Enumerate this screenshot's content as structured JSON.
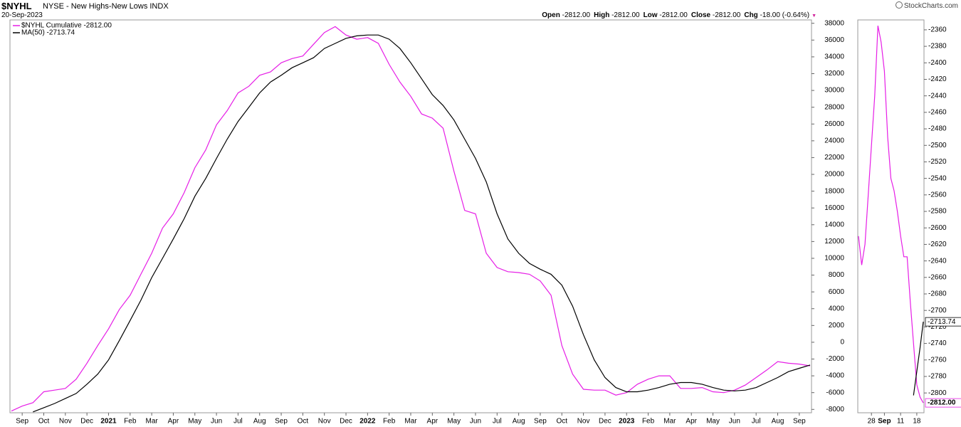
{
  "header": {
    "symbol": "$NYHL",
    "description": "NYSE - New Highs-New Lows INDX",
    "date": "20-Sep-2023",
    "source": "StockCharts.com",
    "quote": [
      {
        "label": "Open",
        "value": "-2812.00"
      },
      {
        "label": "High",
        "value": "-2812.00"
      },
      {
        "label": "Low",
        "value": "-2812.00"
      },
      {
        "label": "Close",
        "value": "-2812.00"
      },
      {
        "label": "Chg",
        "value": "-18.00 (-0.64%)"
      }
    ]
  },
  "chart_data": [
    {
      "type": "line",
      "legend": "upper left",
      "categories": [
        null,
        "Sep",
        null,
        "Oct",
        null,
        "Nov",
        null,
        "Dec",
        null,
        "2021",
        null,
        "Feb",
        null,
        "Mar",
        null,
        "Apr",
        null,
        "May",
        null,
        "Jun",
        null,
        "Jul",
        null,
        "Aug",
        null,
        "Sep",
        null,
        "Oct",
        null,
        "Nov",
        null,
        "Dec",
        null,
        "2022",
        null,
        "Feb",
        null,
        "Mar",
        null,
        "Apr",
        null,
        "May",
        null,
        "Jun",
        null,
        "Jul",
        null,
        "Aug",
        null,
        "Sep",
        null,
        "Oct",
        null,
        "Nov",
        null,
        "Dec",
        null,
        "2023",
        null,
        "Feb",
        null,
        "Mar",
        null,
        "Apr",
        null,
        "May",
        null,
        "Jun",
        null,
        "Jul",
        null,
        "Aug",
        null,
        "Sep",
        null
      ],
      "series": [
        {
          "name": "$NYHL Cumulative -2812.00",
          "color": "#e61ee6",
          "values": [
            -8200,
            -7600,
            -7200,
            -5900,
            -5700,
            -5500,
            -4400,
            -2500,
            -400,
            1600,
            3900,
            5600,
            8100,
            10600,
            13600,
            15300,
            17800,
            20800,
            22900,
            25900,
            27600,
            29700,
            30500,
            31800,
            32200,
            33300,
            33800,
            34100,
            35500,
            36900,
            37600,
            36600,
            36100,
            36300,
            35600,
            33100,
            31000,
            29300,
            27200,
            26700,
            25500,
            20400,
            15700,
            15300,
            10600,
            8900,
            8400,
            8300,
            8100,
            7300,
            5600,
            -400,
            -3800,
            -5600,
            -5700,
            -5700,
            -6300,
            -6000,
            -5000,
            -4400,
            -4000,
            -4000,
            -5500,
            -5500,
            -5400,
            -5900,
            -6000,
            -5700,
            -5100,
            -4200,
            -3300,
            -2300,
            -2500,
            -2600,
            -2812
          ]
        },
        {
          "name": "MA(50) -2713.74",
          "color": "#000000",
          "values": [
            null,
            null,
            -8300,
            -7800,
            -7300,
            -6700,
            -6100,
            -5000,
            -3800,
            -2100,
            200,
            2600,
            5000,
            7700,
            10000,
            12300,
            14700,
            17400,
            19500,
            21900,
            24200,
            26300,
            28000,
            29700,
            31000,
            31800,
            32700,
            33300,
            33900,
            35000,
            35600,
            36200,
            36500,
            36600,
            36600,
            36100,
            35000,
            33300,
            31400,
            29500,
            28200,
            26500,
            24200,
            21900,
            19100,
            15300,
            12300,
            10600,
            9400,
            8700,
            8100,
            6800,
            4300,
            900,
            -2100,
            -4200,
            -5400,
            -5900,
            -5900,
            -5700,
            -5400,
            -5000,
            -4800,
            -4800,
            -5000,
            -5400,
            -5700,
            -5800,
            -5700,
            -5400,
            -4800,
            -4200,
            -3500,
            -3100,
            -2713.74
          ]
        }
      ],
      "ylim": [
        -8400,
        38400
      ],
      "yticks": [
        -8000,
        -6000,
        -4000,
        -2000,
        0,
        2000,
        4000,
        6000,
        8000,
        10000,
        12000,
        14000,
        16000,
        18000,
        20000,
        22000,
        24000,
        26000,
        28000,
        30000,
        32000,
        34000,
        36000,
        38000
      ]
    },
    {
      "type": "line",
      "categories": [
        null,
        null,
        null,
        null,
        "28",
        null,
        null,
        null,
        "Sep",
        null,
        null,
        null,
        null,
        "11",
        null,
        null,
        null,
        null,
        "18",
        null,
        null
      ],
      "series": [
        {
          "color": "#e61ee6",
          "values": [
            -2610,
            -2645,
            -2620,
            -2560,
            -2500,
            -2440,
            -2355,
            -2375,
            -2410,
            -2490,
            -2540,
            -2555,
            -2580,
            -2610,
            -2635,
            -2635,
            -2690,
            -2740,
            -2790,
            -2805,
            -2812
          ],
          "value_labels": [
            null,
            null,
            null,
            null,
            null,
            null,
            null,
            null,
            null,
            null,
            null,
            null,
            null,
            null,
            null,
            null,
            null,
            null,
            null,
            null,
            "-2812.00"
          ]
        },
        {
          "color": "#000000",
          "values": [
            null,
            null,
            null,
            null,
            null,
            null,
            null,
            null,
            null,
            null,
            null,
            null,
            null,
            null,
            null,
            null,
            null,
            -2803,
            -2774,
            -2745,
            -2713.74
          ]
        }
      ],
      "ylim": [
        -2824,
        -2348
      ],
      "yticks": [
        -2800,
        -2780,
        -2760,
        -2740,
        -2720,
        -2700,
        -2680,
        -2660,
        -2640,
        -2620,
        -2600,
        -2580,
        -2560,
        -2540,
        -2520,
        -2500,
        -2480,
        -2460,
        -2440,
        -2420,
        -2400,
        -2380,
        -2360
      ]
    }
  ]
}
